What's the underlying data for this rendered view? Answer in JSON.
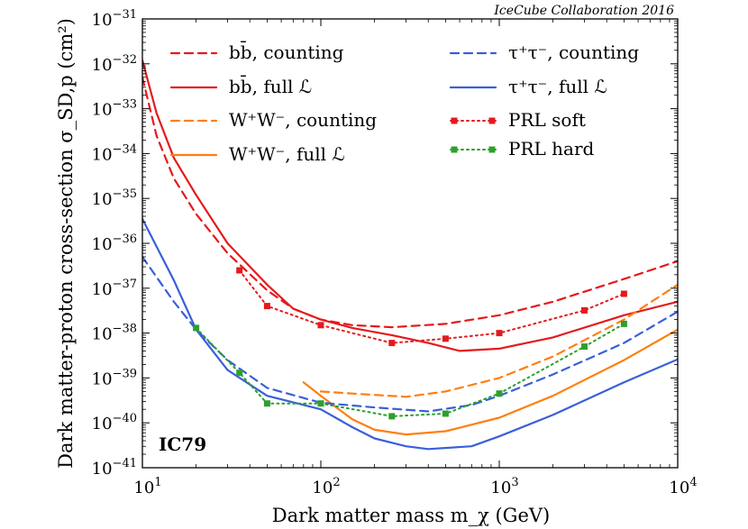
{
  "chart_data": {
    "type": "line",
    "credit": "IceCube Collaboration 2016",
    "tag": "IC79",
    "xlabel": "Dark matter mass m_χ (GeV)",
    "ylabel": "Dark matter-proton cross-section σ_SD,p (cm²)",
    "xscale": "log",
    "yscale": "log",
    "xlim": [
      10,
      10000
    ],
    "ylim": [
      1e-41,
      1e-31
    ],
    "x_ticks": [
      {
        "value": 10,
        "base": "10",
        "exp": "1"
      },
      {
        "value": 100,
        "base": "10",
        "exp": "2"
      },
      {
        "value": 1000,
        "base": "10",
        "exp": "3"
      },
      {
        "value": 10000,
        "base": "10",
        "exp": "4"
      }
    ],
    "y_ticks": [
      {
        "value": 1e-31,
        "base": "10",
        "exp": "−31"
      },
      {
        "value": 1e-32,
        "base": "10",
        "exp": "−32"
      },
      {
        "value": 1e-33,
        "base": "10",
        "exp": "−33"
      },
      {
        "value": 1e-34,
        "base": "10",
        "exp": "−34"
      },
      {
        "value": 1e-35,
        "base": "10",
        "exp": "−35"
      },
      {
        "value": 1e-36,
        "base": "10",
        "exp": "−36"
      },
      {
        "value": 1e-37,
        "base": "10",
        "exp": "−37"
      },
      {
        "value": 1e-38,
        "base": "10",
        "exp": "−38"
      },
      {
        "value": 1e-39,
        "base": "10",
        "exp": "−39"
      },
      {
        "value": 1e-40,
        "base": "10",
        "exp": "−40"
      },
      {
        "value": 1e-41,
        "base": "10",
        "exp": "−41"
      }
    ],
    "series": [
      {
        "name": "bb-counting",
        "label": "bb̄, counting",
        "color": "#e41a1c",
        "style": "dashed",
        "points": [
          [
            10,
            5e-33
          ],
          [
            12,
            2.5e-34
          ],
          [
            15,
            2.8e-35
          ],
          [
            20,
            4.5e-36
          ],
          [
            30,
            6e-37
          ],
          [
            50,
            9e-38
          ],
          [
            70,
            3.5e-38
          ],
          [
            100,
            2e-38
          ],
          [
            150,
            1.5e-38
          ],
          [
            250,
            1.35e-38
          ],
          [
            500,
            1.6e-38
          ],
          [
            1000,
            2.5e-38
          ],
          [
            2000,
            5e-38
          ],
          [
            5000,
            1.6e-37
          ],
          [
            10000,
            4e-37
          ]
        ]
      },
      {
        "name": "bb-full",
        "label": "bb̄, full ℒ",
        "color": "#e41a1c",
        "style": "solid",
        "points": [
          [
            10,
            1.2e-32
          ],
          [
            12,
            8e-34
          ],
          [
            15,
            8e-35
          ],
          [
            20,
            1.2e-35
          ],
          [
            30,
            1e-36
          ],
          [
            50,
            1.2e-37
          ],
          [
            70,
            3.5e-38
          ],
          [
            100,
            2e-38
          ],
          [
            150,
            1.3e-38
          ],
          [
            250,
            9e-39
          ],
          [
            400,
            6e-39
          ],
          [
            600,
            4e-39
          ],
          [
            1000,
            4.5e-39
          ],
          [
            2000,
            8e-39
          ],
          [
            5000,
            2.5e-38
          ],
          [
            10000,
            5e-38
          ]
        ]
      },
      {
        "name": "ww-counting",
        "label": "W⁺W⁻, counting",
        "color": "#ff7f0e",
        "style": "dashed",
        "points": [
          [
            100,
            5e-40
          ],
          [
            150,
            4.5e-40
          ],
          [
            300,
            3.8e-40
          ],
          [
            500,
            5e-40
          ],
          [
            1000,
            1e-39
          ],
          [
            2000,
            3e-39
          ],
          [
            5000,
            2e-38
          ],
          [
            10000,
            1.2e-37
          ]
        ]
      },
      {
        "name": "ww-full",
        "label": "W⁺W⁻, full ℒ",
        "color": "#ff7f0e",
        "style": "solid",
        "points": [
          [
            80,
            8e-40
          ],
          [
            100,
            4e-40
          ],
          [
            150,
            1.2e-40
          ],
          [
            200,
            7e-41
          ],
          [
            300,
            5.5e-41
          ],
          [
            500,
            6.5e-41
          ],
          [
            1000,
            1.3e-40
          ],
          [
            2000,
            4e-40
          ],
          [
            5000,
            2.5e-39
          ],
          [
            10000,
            1.2e-38
          ]
        ]
      },
      {
        "name": "tau-counting",
        "label": "τ⁺τ⁻, counting",
        "color": "#3a5fd9",
        "style": "dashed",
        "points": [
          [
            10,
            5e-37
          ],
          [
            15,
            5e-38
          ],
          [
            20,
            1.2e-38
          ],
          [
            30,
            2.5e-39
          ],
          [
            50,
            6e-40
          ],
          [
            100,
            2.8e-40
          ],
          [
            200,
            2.2e-40
          ],
          [
            400,
            1.8e-40
          ],
          [
            700,
            2.5e-40
          ],
          [
            1000,
            4e-40
          ],
          [
            2000,
            1.2e-39
          ],
          [
            5000,
            6e-39
          ],
          [
            10000,
            3e-38
          ]
        ]
      },
      {
        "name": "tau-full",
        "label": "τ⁺τ⁻, full ℒ",
        "color": "#3a5fd9",
        "style": "solid",
        "points": [
          [
            10,
            3.5e-36
          ],
          [
            15,
            1.5e-37
          ],
          [
            20,
            1.2e-38
          ],
          [
            30,
            1.5e-39
          ],
          [
            50,
            4e-40
          ],
          [
            100,
            2e-40
          ],
          [
            150,
            8e-41
          ],
          [
            200,
            4.5e-41
          ],
          [
            300,
            3e-41
          ],
          [
            400,
            2.6e-41
          ],
          [
            700,
            3e-41
          ],
          [
            1000,
            5e-41
          ],
          [
            2000,
            1.5e-40
          ],
          [
            5000,
            8e-40
          ],
          [
            10000,
            2.6e-39
          ]
        ]
      },
      {
        "name": "prl-soft",
        "label": "PRL soft",
        "color": "#e41a1c",
        "style": "dotted",
        "markers": true,
        "points": [
          [
            35,
            2.5e-37
          ],
          [
            50,
            4e-38
          ],
          [
            100,
            1.5e-38
          ],
          [
            250,
            6e-39
          ],
          [
            500,
            7.5e-39
          ],
          [
            1000,
            1e-38
          ],
          [
            3000,
            3.2e-38
          ],
          [
            5000,
            7.5e-38
          ]
        ]
      },
      {
        "name": "prl-hard",
        "label": "PRL hard",
        "color": "#2ca02c",
        "style": "dotted",
        "markers": true,
        "points": [
          [
            20,
            1.3e-38
          ],
          [
            35,
            1.3e-39
          ],
          [
            50,
            2.7e-40
          ],
          [
            100,
            2.7e-40
          ],
          [
            250,
            1.4e-40
          ],
          [
            500,
            1.6e-40
          ],
          [
            1000,
            4.5e-40
          ],
          [
            3000,
            5e-39
          ],
          [
            5000,
            1.6e-38
          ]
        ]
      }
    ]
  }
}
